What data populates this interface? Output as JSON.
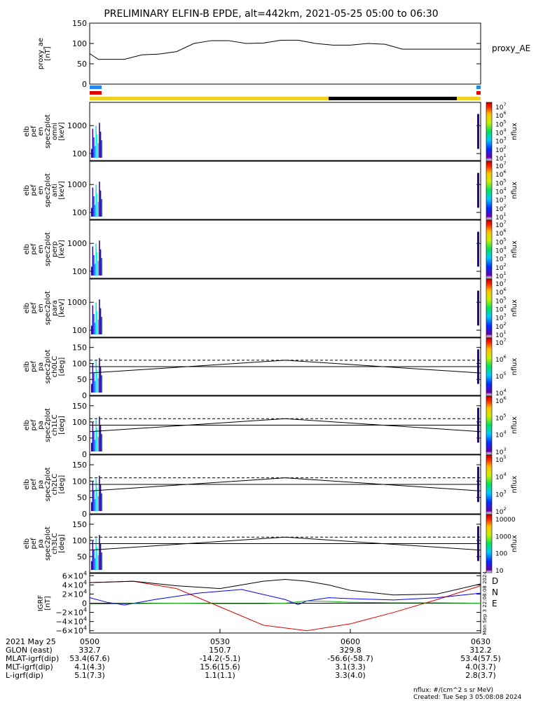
{
  "title": "PRELIMINARY ELFIN-B EPDE, alt=442km, 2021-05-25 05:00 to 06:30",
  "chart_data": [
    {
      "type": "line",
      "panel": "proxy_ae",
      "ylabel": [
        "proxy_ae",
        "[nT]"
      ],
      "yticks": [
        "150",
        "100",
        "50",
        "0"
      ],
      "ylim": [
        0,
        150
      ],
      "legend": "proxy_AE",
      "x_minutes": [
        0,
        2,
        4,
        8,
        12,
        16,
        20,
        24,
        28,
        32,
        36,
        40,
        44,
        48,
        52,
        56,
        60,
        64,
        68,
        72,
        76,
        80,
        84,
        88,
        90
      ],
      "values": [
        75,
        61,
        61,
        61,
        72,
        74,
        80,
        100,
        107,
        107,
        100,
        101,
        108,
        108,
        100,
        96,
        96,
        100,
        98,
        86,
        86,
        86,
        86,
        86,
        86
      ]
    },
    {
      "type": "heatmap",
      "panel": "en_omni",
      "ylabel": [
        "elb",
        "pef",
        "en",
        "spec2plot",
        "omni",
        "[keV]"
      ],
      "yticks": [
        "1000",
        "100"
      ],
      "scale": "log",
      "colorbar": {
        "label": "nflux",
        "ticks": [
          "10^7",
          "10^6",
          "10^5",
          "10^4",
          "10^3",
          "10^2",
          "10^1"
        ]
      }
    },
    {
      "type": "heatmap",
      "panel": "en_anti",
      "ylabel": [
        "elb",
        "pef",
        "en",
        "spec2plot",
        "anti",
        "[keV]"
      ],
      "yticks": [
        "1000",
        "100"
      ],
      "scale": "log",
      "colorbar": {
        "label": "nflux",
        "ticks": [
          "10^7",
          "10^6",
          "10^5",
          "10^4",
          "10^3",
          "10^2",
          "10^1"
        ]
      }
    },
    {
      "type": "heatmap",
      "panel": "en_perp",
      "ylabel": [
        "elb",
        "pef",
        "en",
        "spec2plot",
        "perp",
        "[keV]"
      ],
      "yticks": [
        "1000",
        "100"
      ],
      "scale": "log",
      "colorbar": {
        "label": "nflux",
        "ticks": [
          "10^7",
          "10^6",
          "10^5",
          "10^4",
          "10^3",
          "10^2",
          "10^1"
        ]
      }
    },
    {
      "type": "heatmap",
      "panel": "en_para",
      "ylabel": [
        "elb",
        "pef",
        "en",
        "spec2plot",
        "para",
        "[keV]"
      ],
      "yticks": [
        "1000",
        "100"
      ],
      "scale": "log",
      "colorbar": {
        "label": "nflux",
        "ticks": [
          "10^7",
          "10^6",
          "10^5",
          "10^4",
          "10^3",
          "10^2",
          "10^1"
        ]
      }
    },
    {
      "type": "heatmap",
      "panel": "pa_ch0",
      "ylabel": [
        "elb",
        "pef",
        "pa",
        "spec2plot",
        "ch0LC",
        "[deg]"
      ],
      "yticks": [
        "150",
        "100",
        "50",
        "0"
      ],
      "ylim": [
        0,
        180
      ],
      "lc_solid": [
        [
          0,
          70
        ],
        [
          45,
          110
        ],
        [
          90,
          70
        ]
      ],
      "lc_dashed": 110,
      "ninety": 90,
      "colorbar": {
        "label": "nflux",
        "ticks": [
          "10^7",
          "10^6",
          "10^5",
          "10^4"
        ]
      }
    },
    {
      "type": "heatmap",
      "panel": "pa_ch1",
      "ylabel": [
        "elb",
        "pef",
        "pa",
        "spec2plot",
        "ch1LC",
        "[deg]"
      ],
      "yticks": [
        "150",
        "100",
        "50",
        "0"
      ],
      "ylim": [
        0,
        180
      ],
      "lc_solid": [
        [
          0,
          70
        ],
        [
          45,
          110
        ],
        [
          90,
          70
        ]
      ],
      "lc_dashed": 110,
      "ninety": 90,
      "colorbar": {
        "label": "nflux",
        "ticks": [
          "10^6",
          "10^5",
          "10^4",
          "10^3"
        ]
      }
    },
    {
      "type": "heatmap",
      "panel": "pa_ch2",
      "ylabel": [
        "elb",
        "pef",
        "pa",
        "spec2plot",
        "ch2LC",
        "[deg]"
      ],
      "yticks": [
        "150",
        "100",
        "50",
        "0"
      ],
      "ylim": [
        0,
        180
      ],
      "lc_solid": [
        [
          0,
          70
        ],
        [
          45,
          110
        ],
        [
          90,
          70
        ]
      ],
      "lc_dashed": 110,
      "ninety": 90,
      "colorbar": {
        "label": "nflux",
        "ticks": [
          "10^5",
          "10^4",
          "10^3",
          "10^2"
        ]
      }
    },
    {
      "type": "heatmap",
      "panel": "pa_ch3",
      "ylabel": [
        "elb",
        "pef",
        "pa",
        "spec2plot",
        "ch3LC",
        "[deg]"
      ],
      "yticks": [
        "150",
        "100",
        "50"
      ],
      "ylim": [
        0,
        180
      ],
      "lc_solid": [
        [
          0,
          70
        ],
        [
          45,
          110
        ],
        [
          90,
          70
        ]
      ],
      "lc_dashed": 110,
      "ninety": 90,
      "colorbar": {
        "label": "nflux",
        "ticks": [
          "10000",
          "1000",
          "100",
          "10"
        ]
      }
    },
    {
      "type": "line",
      "panel": "igrf",
      "ylabel": [
        "IGRF",
        "[nT]"
      ],
      "yticks": [
        "6×10^4",
        "4×10^4",
        "2×10^4",
        "0",
        "−2×10^4",
        "−4×10^4",
        "−6×10^4"
      ],
      "ylim": [
        -65000,
        65000
      ],
      "series": [
        {
          "name": "D",
          "color": "#e00000",
          "x_minutes": [
            0,
            10,
            20,
            30,
            40,
            50,
            60,
            70,
            80,
            90
          ],
          "values": [
            45000,
            48000,
            32000,
            -8000,
            -48000,
            -60000,
            -45000,
            -20000,
            8000,
            38000
          ]
        },
        {
          "name": "N",
          "color": "#0000ee",
          "x_minutes": [
            0,
            4,
            8,
            15,
            25,
            35,
            45,
            48,
            50,
            55,
            60,
            70,
            80,
            90
          ],
          "values": [
            12000,
            2000,
            -4000,
            8000,
            22000,
            30000,
            8000,
            -3000,
            5000,
            12000,
            10000,
            7000,
            12000,
            22000
          ]
        },
        {
          "name": "E",
          "color": "#00bb00",
          "x_minutes": [
            0,
            10,
            20,
            30,
            40,
            45,
            48,
            50,
            55,
            60,
            70,
            80,
            90
          ],
          "values": [
            -2000,
            -1000,
            0,
            -1000,
            -1000,
            0,
            3000,
            5000,
            4000,
            2000,
            1000,
            1000,
            0
          ]
        },
        {
          "name": "",
          "color": "#000000",
          "x_minutes": [
            0,
            10,
            20,
            30,
            35,
            40,
            45,
            50,
            55,
            60,
            70,
            80,
            90
          ],
          "values": [
            45000,
            48000,
            38000,
            32000,
            40000,
            48000,
            52000,
            48000,
            40000,
            28000,
            18000,
            20000,
            42000
          ]
        }
      ]
    }
  ],
  "x_axis": {
    "ticks": [
      "0500",
      "0530",
      "0600",
      "0630"
    ],
    "rows": [
      {
        "label": "2021 May 25",
        "vals": [
          "0500",
          "0530",
          "0600",
          "0630"
        ]
      },
      {
        "label": "GLON (east)",
        "vals": [
          "332.7",
          "150.7",
          "329.8",
          "312.2"
        ]
      },
      {
        "label": "MLAT-igrf(dip)",
        "vals": [
          "53.4(67.6)",
          "-14.2(-5.1)",
          "-56.6(-58.7)",
          "53.4(57.5)"
        ]
      },
      {
        "label": "MLT-igrf(dip)",
        "vals": [
          "4.1(4.3)",
          "15.6(15.6)",
          "3.1(3.3)",
          "4.0(3.7)"
        ]
      },
      {
        "label": "L-igrf(dip)",
        "vals": [
          "5.1(7.3)",
          "1.1(1.1)",
          "3.3(4.0)",
          "2.8(3.7)"
        ]
      }
    ]
  },
  "footer": {
    "units": "nflux: #/(cm^2 s sr MeV)",
    "created": "Created: Tue Sep  3 05:08:08 2024",
    "side_stamp": "Mon Sep  3 22:08:08 2024"
  },
  "colors": {
    "accent_blue": "#2288ee",
    "accent_red": "#e00000",
    "state_yellow": "#f0d020"
  }
}
